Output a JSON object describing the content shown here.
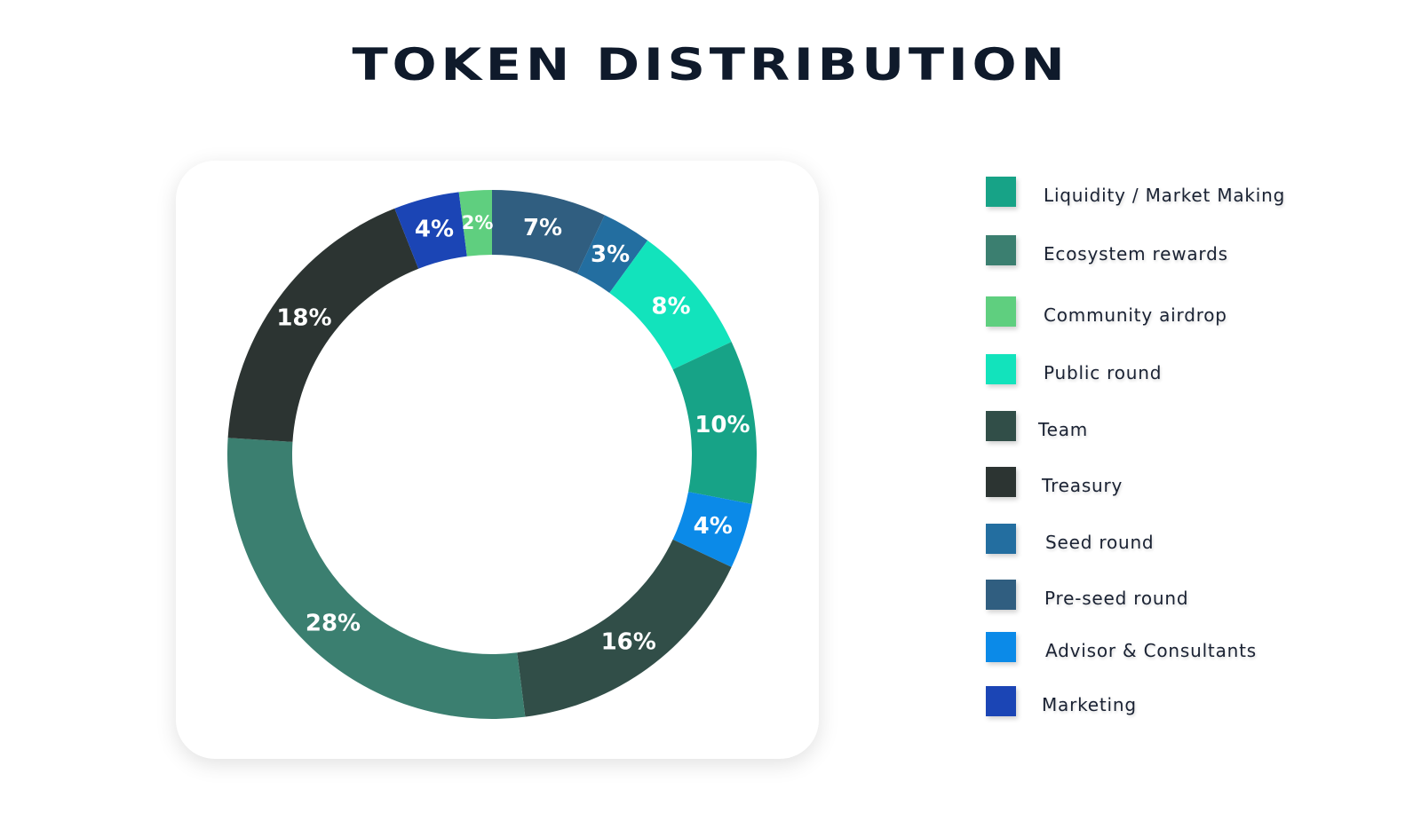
{
  "title": "TOKEN DISTRIBUTION",
  "chart_data": {
    "type": "pie",
    "style": "donut",
    "title": "TOKEN DISTRIBUTION",
    "slices": [
      {
        "label": "Pre-seed round",
        "value": 7,
        "display": "7%",
        "color": "#305e80"
      },
      {
        "label": "Seed round",
        "value": 3,
        "display": "3%",
        "color": "#236ea0"
      },
      {
        "label": "Public round",
        "value": 8,
        "display": "8%",
        "color": "#12e3bc"
      },
      {
        "label": "Liquidity / Market Making",
        "value": 10,
        "display": "10%",
        "color": "#17a387"
      },
      {
        "label": "Advisor & Consultants",
        "value": 4,
        "display": "4%",
        "color": "#0b8ae8"
      },
      {
        "label": "Team",
        "value": 16,
        "display": "16%",
        "color": "#314e48"
      },
      {
        "label": "Ecosystem rewards",
        "value": 28,
        "display": "28%",
        "color": "#3b7f70"
      },
      {
        "label": "Treasury",
        "value": 18,
        "display": "18%",
        "color": "#2c3432"
      },
      {
        "label": "Marketing",
        "value": 4,
        "display": "4%",
        "color": "#1b45b5"
      },
      {
        "label": "Community airdrop",
        "value": 2,
        "display": "2%",
        "color": "#5fcf7f"
      }
    ],
    "legend": [
      {
        "label": "Liquidity / Market Making",
        "color": "#17a387"
      },
      {
        "label": "Ecosystem rewards",
        "color": "#3b7f70"
      },
      {
        "label": "Community airdrop",
        "color": "#5fcf7f"
      },
      {
        "label": "Public round",
        "color": "#12e3bc"
      },
      {
        "label": "Team",
        "color": "#314e48"
      },
      {
        "label": "Treasury",
        "color": "#2c3432"
      },
      {
        "label": "Seed round",
        "color": "#236ea0"
      },
      {
        "label": "Pre-seed round",
        "color": "#305e80"
      },
      {
        "label": "Advisor & Consultants",
        "color": "#0b8ae8"
      },
      {
        "label": "Marketing",
        "color": "#1b45b5"
      }
    ],
    "legend_position": "right"
  }
}
